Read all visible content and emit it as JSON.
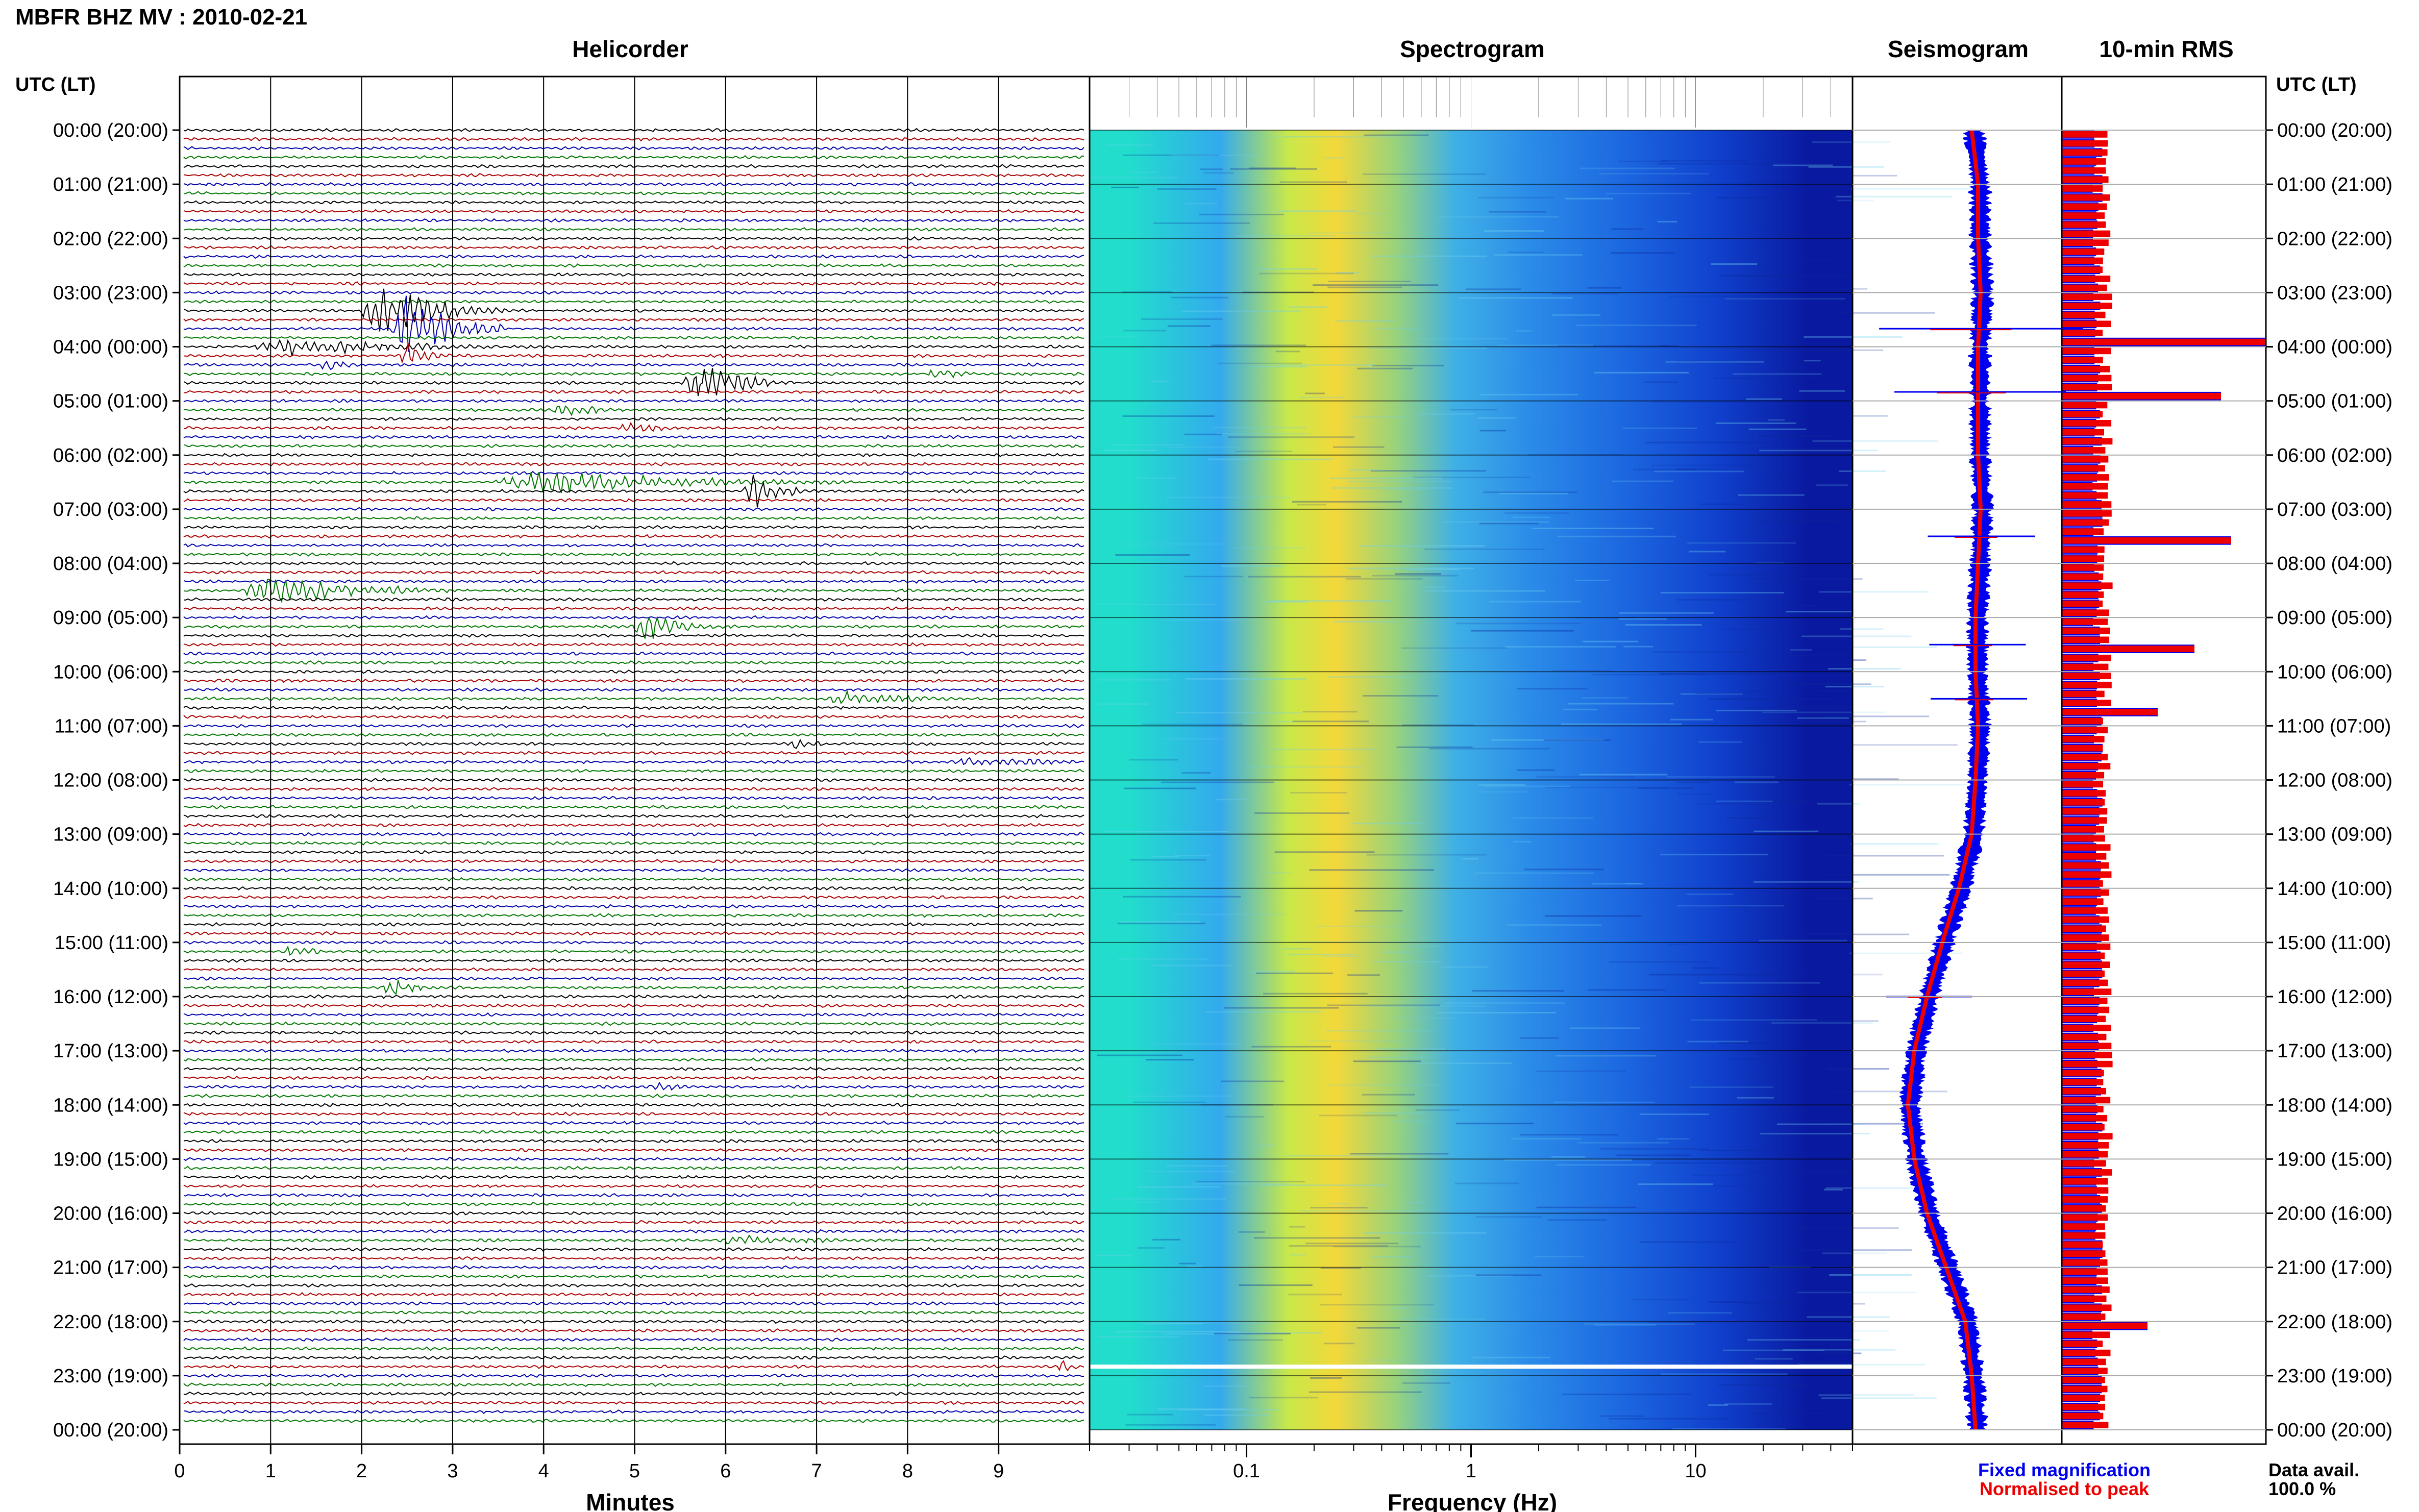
{
  "header": {
    "title": "MBFR BHZ MV : 2010-02-21",
    "utc_left": "UTC (LT)",
    "utc_right": "UTC (LT)"
  },
  "panels": {
    "helicorder": "Helicorder",
    "spectrogram": "Spectrogram",
    "seismogram": "Seismogram",
    "rms": "10-min RMS"
  },
  "axes": {
    "helicorder_xlabel": "Minutes",
    "spectrogram_xlabel": "Frequency (Hz)"
  },
  "legend": {
    "fixed": "Fixed magnification",
    "normalised": "Normalised to peak",
    "fixed_color": "#0000ee",
    "normalised_color": "#ee0000"
  },
  "data_avail": {
    "label": "Data avail.",
    "value": "100.0 %"
  },
  "colors": {
    "trace_cycle": [
      "#000000",
      "#aa0000",
      "#0000aa",
      "#007700"
    ],
    "blue": "#0000ee",
    "red": "#ee0000"
  },
  "chart_data": [
    {
      "type": "line",
      "name": "helicorder",
      "title": "Helicorder",
      "xlabel": "Minutes",
      "xlim": [
        0,
        10
      ],
      "x_ticks": [
        "0",
        "1",
        "2",
        "3",
        "4",
        "5",
        "6",
        "7",
        "8",
        "9"
      ],
      "row_minutes": 10,
      "row_count": 144,
      "time_labels": [
        "00:00 (20:00)",
        "01:00 (21:00)",
        "02:00 (22:00)",
        "03:00 (23:00)",
        "04:00 (00:00)",
        "05:00 (01:00)",
        "06:00 (02:00)",
        "07:00 (03:00)",
        "08:00 (04:00)",
        "09:00 (05:00)",
        "10:00 (06:00)",
        "11:00 (07:00)",
        "12:00 (08:00)",
        "13:00 (09:00)",
        "14:00 (10:00)",
        "15:00 (11:00)",
        "16:00 (12:00)",
        "17:00 (13:00)",
        "18:00 (14:00)",
        "19:00 (15:00)",
        "20:00 (16:00)",
        "21:00 (17:00)",
        "22:00 (18:00)",
        "23:00 (19:00)",
        "00:00 (20:00)"
      ],
      "events": [
        {
          "row": 20,
          "minute": 2.2,
          "duration": 1.2,
          "amp": 3.5
        },
        {
          "row": 22,
          "minute": 2.5,
          "duration": 0.9,
          "amp": 5.0
        },
        {
          "row": 24,
          "minute": 1.2,
          "duration": 2.2,
          "amp": 1.2
        },
        {
          "row": 25,
          "minute": 2.5,
          "duration": 0.4,
          "amp": 2.0
        },
        {
          "row": 26,
          "minute": 1.6,
          "duration": 0.4,
          "amp": 0.8
        },
        {
          "row": 27,
          "minute": 8.3,
          "duration": 0.5,
          "amp": 0.6
        },
        {
          "row": 28,
          "minute": 5.7,
          "duration": 0.9,
          "amp": 2.5
        },
        {
          "row": 31,
          "minute": 4.2,
          "duration": 0.6,
          "amp": 1.0
        },
        {
          "row": 33,
          "minute": 4.9,
          "duration": 0.6,
          "amp": 0.8
        },
        {
          "row": 39,
          "minute": 4.0,
          "duration": 2.8,
          "amp": 1.5
        },
        {
          "row": 40,
          "minute": 6.3,
          "duration": 0.6,
          "amp": 2.2
        },
        {
          "row": 51,
          "minute": 1.0,
          "duration": 1.8,
          "amp": 1.8
        },
        {
          "row": 55,
          "minute": 5.1,
          "duration": 0.8,
          "amp": 1.8
        },
        {
          "row": 63,
          "minute": 7.3,
          "duration": 1.2,
          "amp": 0.8
        },
        {
          "row": 68,
          "minute": 6.7,
          "duration": 0.4,
          "amp": 1.0
        },
        {
          "row": 70,
          "minute": 8.7,
          "duration": 1.3,
          "amp": 0.6
        },
        {
          "row": 91,
          "minute": 1.2,
          "duration": 0.5,
          "amp": 0.6
        },
        {
          "row": 95,
          "minute": 2.3,
          "duration": 0.5,
          "amp": 1.4
        },
        {
          "row": 106,
          "minute": 5.2,
          "duration": 0.4,
          "amp": 0.6
        },
        {
          "row": 123,
          "minute": 6.1,
          "duration": 1.2,
          "amp": 0.6
        },
        {
          "row": 137,
          "minute": 9.7,
          "duration": 0.3,
          "amp": 0.6
        }
      ]
    },
    {
      "type": "heatmap",
      "name": "spectrogram",
      "title": "Spectrogram",
      "xlabel": "Frequency (Hz)",
      "xscale": "log",
      "xlim": [
        0.02,
        50
      ],
      "x_ticks": [
        "0.1",
        "1",
        "10"
      ],
      "color_bands": [
        {
          "fmax": 0.045,
          "color": "#22ddcc"
        },
        {
          "fmax": 0.13,
          "color": "#33aaee"
        },
        {
          "fmax": 0.18,
          "color": "#c8e84a"
        },
        {
          "fmax": 0.35,
          "color": "#f3d83a"
        },
        {
          "fmax": 0.6,
          "color": "#9ad37a"
        },
        {
          "fmax": 1.2,
          "color": "#3fb0e6"
        },
        {
          "fmax": 3.0,
          "color": "#2a8ae8"
        },
        {
          "fmax": 8.0,
          "color": "#1c66e0"
        },
        {
          "fmax": 20.0,
          "color": "#1040cc"
        },
        {
          "fmax": 50.0,
          "color": "#0a1aa0"
        }
      ],
      "gap_row_time": "22:50"
    },
    {
      "type": "line",
      "name": "seismogram",
      "title": "Seismogram",
      "series": [
        {
          "name": "Fixed magnification",
          "color": "#0000ee"
        },
        {
          "name": "Normalised to peak",
          "color": "#ee0000"
        }
      ],
      "envelope_offset_by_hour": [
        0.55,
        0.6,
        0.6,
        0.62,
        0.6,
        0.6,
        0.6,
        0.62,
        0.6,
        0.58,
        0.58,
        0.6,
        0.58,
        0.55,
        0.45,
        0.32,
        0.2,
        0.1,
        0.05,
        0.1,
        0.2,
        0.35,
        0.5,
        0.55,
        0.58
      ],
      "spikes": [
        {
          "time": "03:40",
          "size": 0.95
        },
        {
          "time": "04:50",
          "size": 0.8
        },
        {
          "time": "07:30",
          "size": 0.5
        },
        {
          "time": "09:30",
          "size": 0.45
        },
        {
          "time": "10:30",
          "size": 0.45
        },
        {
          "time": "16:00",
          "size": 0.4
        }
      ]
    },
    {
      "type": "bar",
      "name": "rms",
      "title": "10-min RMS",
      "series": [
        {
          "name": "Fixed magnification",
          "color": "#0000ee"
        },
        {
          "name": "Normalised to peak",
          "color": "#ee0000"
        }
      ],
      "peaks": [
        {
          "time": "03:50",
          "value": 1.0
        },
        {
          "time": "04:50",
          "value": 0.78
        },
        {
          "time": "07:30",
          "value": 0.83
        },
        {
          "time": "09:30",
          "value": 0.65
        },
        {
          "time": "10:40",
          "value": 0.47
        },
        {
          "time": "22:00",
          "value": 0.42
        }
      ]
    }
  ]
}
